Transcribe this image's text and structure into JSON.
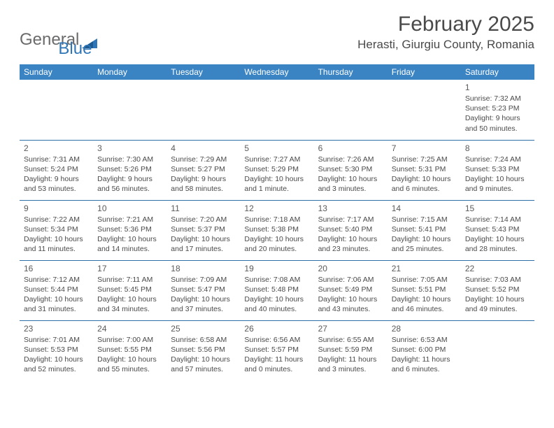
{
  "logo": {
    "word1": "General",
    "word2": "Blue",
    "icon_color": "#2f76b8"
  },
  "title": "February 2025",
  "location": "Herasti, Giurgiu County, Romania",
  "header_bg": "#3b84c4",
  "header_text_color": "#ffffff",
  "cell_border_color": "#2f6fa8",
  "day_headers": [
    "Sunday",
    "Monday",
    "Tuesday",
    "Wednesday",
    "Thursday",
    "Friday",
    "Saturday"
  ],
  "weeks": [
    [
      {
        "empty": true
      },
      {
        "empty": true
      },
      {
        "empty": true
      },
      {
        "empty": true
      },
      {
        "empty": true
      },
      {
        "empty": true
      },
      {
        "day": "1",
        "sunrise": "Sunrise: 7:32 AM",
        "sunset": "Sunset: 5:23 PM",
        "daylight1": "Daylight: 9 hours",
        "daylight2": "and 50 minutes."
      }
    ],
    [
      {
        "day": "2",
        "sunrise": "Sunrise: 7:31 AM",
        "sunset": "Sunset: 5:24 PM",
        "daylight1": "Daylight: 9 hours",
        "daylight2": "and 53 minutes."
      },
      {
        "day": "3",
        "sunrise": "Sunrise: 7:30 AM",
        "sunset": "Sunset: 5:26 PM",
        "daylight1": "Daylight: 9 hours",
        "daylight2": "and 56 minutes."
      },
      {
        "day": "4",
        "sunrise": "Sunrise: 7:29 AM",
        "sunset": "Sunset: 5:27 PM",
        "daylight1": "Daylight: 9 hours",
        "daylight2": "and 58 minutes."
      },
      {
        "day": "5",
        "sunrise": "Sunrise: 7:27 AM",
        "sunset": "Sunset: 5:29 PM",
        "daylight1": "Daylight: 10 hours",
        "daylight2": "and 1 minute."
      },
      {
        "day": "6",
        "sunrise": "Sunrise: 7:26 AM",
        "sunset": "Sunset: 5:30 PM",
        "daylight1": "Daylight: 10 hours",
        "daylight2": "and 3 minutes."
      },
      {
        "day": "7",
        "sunrise": "Sunrise: 7:25 AM",
        "sunset": "Sunset: 5:31 PM",
        "daylight1": "Daylight: 10 hours",
        "daylight2": "and 6 minutes."
      },
      {
        "day": "8",
        "sunrise": "Sunrise: 7:24 AM",
        "sunset": "Sunset: 5:33 PM",
        "daylight1": "Daylight: 10 hours",
        "daylight2": "and 9 minutes."
      }
    ],
    [
      {
        "day": "9",
        "sunrise": "Sunrise: 7:22 AM",
        "sunset": "Sunset: 5:34 PM",
        "daylight1": "Daylight: 10 hours",
        "daylight2": "and 11 minutes."
      },
      {
        "day": "10",
        "sunrise": "Sunrise: 7:21 AM",
        "sunset": "Sunset: 5:36 PM",
        "daylight1": "Daylight: 10 hours",
        "daylight2": "and 14 minutes."
      },
      {
        "day": "11",
        "sunrise": "Sunrise: 7:20 AM",
        "sunset": "Sunset: 5:37 PM",
        "daylight1": "Daylight: 10 hours",
        "daylight2": "and 17 minutes."
      },
      {
        "day": "12",
        "sunrise": "Sunrise: 7:18 AM",
        "sunset": "Sunset: 5:38 PM",
        "daylight1": "Daylight: 10 hours",
        "daylight2": "and 20 minutes."
      },
      {
        "day": "13",
        "sunrise": "Sunrise: 7:17 AM",
        "sunset": "Sunset: 5:40 PM",
        "daylight1": "Daylight: 10 hours",
        "daylight2": "and 23 minutes."
      },
      {
        "day": "14",
        "sunrise": "Sunrise: 7:15 AM",
        "sunset": "Sunset: 5:41 PM",
        "daylight1": "Daylight: 10 hours",
        "daylight2": "and 25 minutes."
      },
      {
        "day": "15",
        "sunrise": "Sunrise: 7:14 AM",
        "sunset": "Sunset: 5:43 PM",
        "daylight1": "Daylight: 10 hours",
        "daylight2": "and 28 minutes."
      }
    ],
    [
      {
        "day": "16",
        "sunrise": "Sunrise: 7:12 AM",
        "sunset": "Sunset: 5:44 PM",
        "daylight1": "Daylight: 10 hours",
        "daylight2": "and 31 minutes."
      },
      {
        "day": "17",
        "sunrise": "Sunrise: 7:11 AM",
        "sunset": "Sunset: 5:45 PM",
        "daylight1": "Daylight: 10 hours",
        "daylight2": "and 34 minutes."
      },
      {
        "day": "18",
        "sunrise": "Sunrise: 7:09 AM",
        "sunset": "Sunset: 5:47 PM",
        "daylight1": "Daylight: 10 hours",
        "daylight2": "and 37 minutes."
      },
      {
        "day": "19",
        "sunrise": "Sunrise: 7:08 AM",
        "sunset": "Sunset: 5:48 PM",
        "daylight1": "Daylight: 10 hours",
        "daylight2": "and 40 minutes."
      },
      {
        "day": "20",
        "sunrise": "Sunrise: 7:06 AM",
        "sunset": "Sunset: 5:49 PM",
        "daylight1": "Daylight: 10 hours",
        "daylight2": "and 43 minutes."
      },
      {
        "day": "21",
        "sunrise": "Sunrise: 7:05 AM",
        "sunset": "Sunset: 5:51 PM",
        "daylight1": "Daylight: 10 hours",
        "daylight2": "and 46 minutes."
      },
      {
        "day": "22",
        "sunrise": "Sunrise: 7:03 AM",
        "sunset": "Sunset: 5:52 PM",
        "daylight1": "Daylight: 10 hours",
        "daylight2": "and 49 minutes."
      }
    ],
    [
      {
        "day": "23",
        "sunrise": "Sunrise: 7:01 AM",
        "sunset": "Sunset: 5:53 PM",
        "daylight1": "Daylight: 10 hours",
        "daylight2": "and 52 minutes."
      },
      {
        "day": "24",
        "sunrise": "Sunrise: 7:00 AM",
        "sunset": "Sunset: 5:55 PM",
        "daylight1": "Daylight: 10 hours",
        "daylight2": "and 55 minutes."
      },
      {
        "day": "25",
        "sunrise": "Sunrise: 6:58 AM",
        "sunset": "Sunset: 5:56 PM",
        "daylight1": "Daylight: 10 hours",
        "daylight2": "and 57 minutes."
      },
      {
        "day": "26",
        "sunrise": "Sunrise: 6:56 AM",
        "sunset": "Sunset: 5:57 PM",
        "daylight1": "Daylight: 11 hours",
        "daylight2": "and 0 minutes."
      },
      {
        "day": "27",
        "sunrise": "Sunrise: 6:55 AM",
        "sunset": "Sunset: 5:59 PM",
        "daylight1": "Daylight: 11 hours",
        "daylight2": "and 3 minutes."
      },
      {
        "day": "28",
        "sunrise": "Sunrise: 6:53 AM",
        "sunset": "Sunset: 6:00 PM",
        "daylight1": "Daylight: 11 hours",
        "daylight2": "and 6 minutes."
      },
      {
        "empty": true
      }
    ]
  ]
}
